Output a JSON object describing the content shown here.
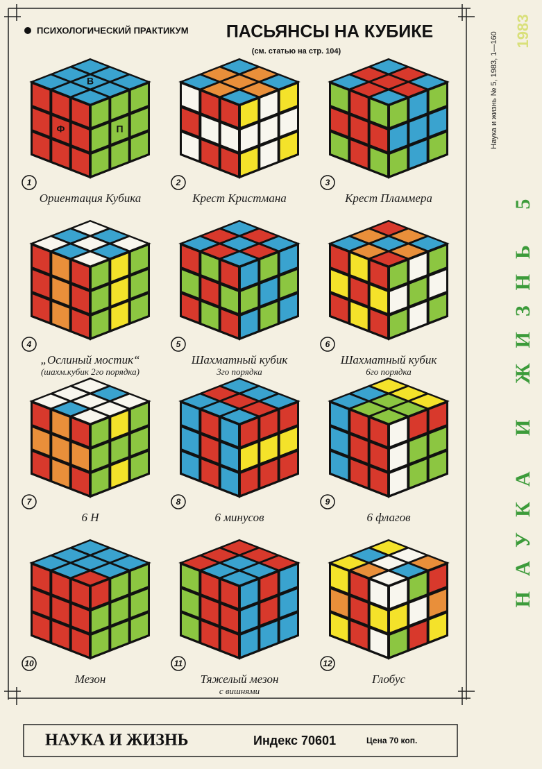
{
  "header": {
    "rubric": "ПСИХОЛОГИЧЕСКИЙ ПРАКТИКУМ",
    "title": "ПАСЬЯНСЫ НА КУБИКЕ",
    "subtitle": "(см. статью на стр. 104)"
  },
  "cubes": [
    {
      "number": 1,
      "caption": "Ориентация Кубика",
      "labels": {
        "top": "В",
        "left": "Ф",
        "right": "П"
      }
    },
    {
      "number": 2,
      "caption": "Крест Кристмана"
    },
    {
      "number": 3,
      "caption": "Крест Пламмера"
    },
    {
      "number": 4,
      "caption": "„Ослиный мостик“",
      "caption2": "(шахм.кубик 2го порядка)"
    },
    {
      "number": 5,
      "caption": "Шахматный кубик",
      "caption2": "3го порядка"
    },
    {
      "number": 6,
      "caption": "Шахматный кубик",
      "caption2": "6го порядка"
    },
    {
      "number": 7,
      "caption": "6 Н"
    },
    {
      "number": 8,
      "caption": "6 минусов"
    },
    {
      "number": 9,
      "caption": "6 флагов"
    },
    {
      "number": 10,
      "caption": "Мезон"
    },
    {
      "number": 11,
      "caption": "Тяжелый мезон",
      "caption2": "с вишнями"
    },
    {
      "number": 12,
      "caption": "Глобус"
    }
  ],
  "side": {
    "imprint": "Наука и жизнь № 5, 1983, 1—160",
    "year": "1983",
    "masthead": "НАУКА И ЖИЗНЬ 5"
  },
  "footer": {
    "magazine": "НАУКА И ЖИЗНЬ",
    "index": "Индекс 70601",
    "price": "Цена 70 коп."
  }
}
